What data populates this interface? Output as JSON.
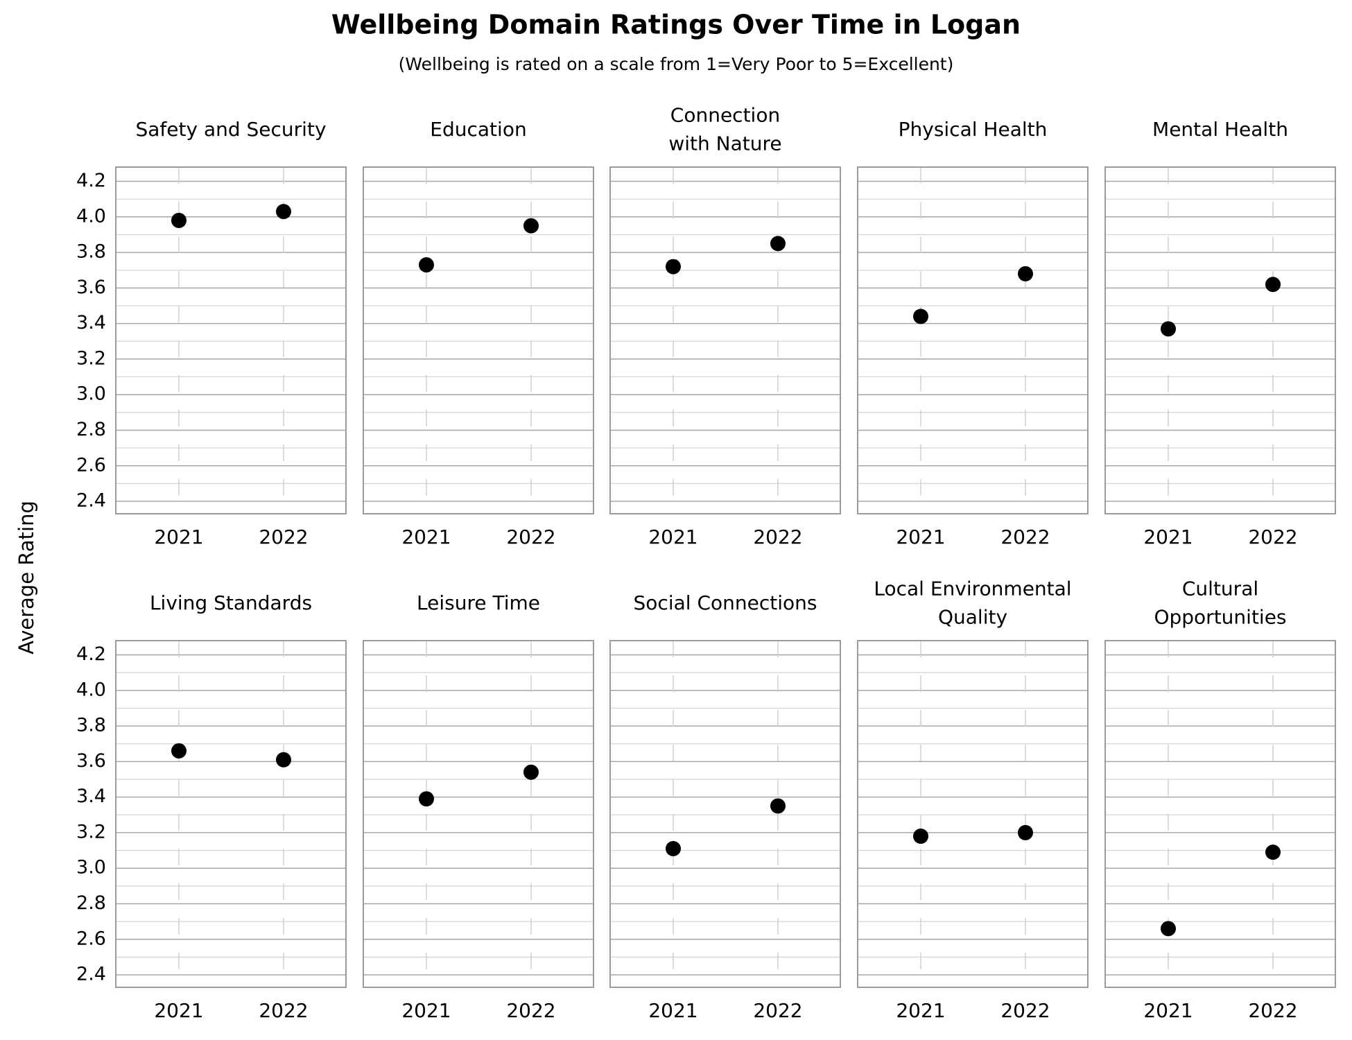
{
  "title": "Wellbeing Domain Ratings Over Time in Logan",
  "subtitle": "(Wellbeing is rated on a scale from 1=Very Poor to 5=Excellent)",
  "ylabel": "Average Rating",
  "ylim": [
    2.33,
    4.28
  ],
  "yticks": [
    2.4,
    2.6,
    2.8,
    {
      "value": 3,
      "label": "3.0"
    },
    3.2,
    3.4,
    3.6,
    3.8,
    {
      "value": 4,
      "label": "4.0"
    },
    4.2
  ],
  "grid": true,
  "minor_grid": true,
  "chart_data": [
    {
      "type": "dot",
      "title": [
        "Safety and Security"
      ],
      "categories": [
        "2021",
        "2022"
      ],
      "values": [
        3.98,
        4.03
      ],
      "color": "#000000"
    },
    {
      "type": "dot",
      "title": [
        "Education"
      ],
      "categories": [
        "2021",
        "2022"
      ],
      "values": [
        3.73,
        3.95
      ],
      "color": "#000000"
    },
    {
      "type": "dot",
      "title": [
        "Connection",
        "with Nature"
      ],
      "categories": [
        "2021",
        "2022"
      ],
      "values": [
        3.72,
        3.85
      ],
      "color": "#000000"
    },
    {
      "type": "dot",
      "title": [
        "Physical Health"
      ],
      "categories": [
        "2021",
        "2022"
      ],
      "values": [
        3.44,
        3.68
      ],
      "color": "#000000"
    },
    {
      "type": "dot",
      "title": [
        "Mental Health"
      ],
      "categories": [
        "2021",
        "2022"
      ],
      "values": [
        3.37,
        3.62
      ],
      "color": "#000000"
    },
    {
      "type": "dot",
      "title": [
        "Living Standards"
      ],
      "categories": [
        "2021",
        "2022"
      ],
      "values": [
        3.66,
        3.61
      ],
      "color": "#000000"
    },
    {
      "type": "dot",
      "title": [
        "Leisure Time"
      ],
      "categories": [
        "2021",
        "2022"
      ],
      "values": [
        3.39,
        3.54
      ],
      "color": "#000000"
    },
    {
      "type": "dot",
      "title": [
        "Social Connections"
      ],
      "categories": [
        "2021",
        "2022"
      ],
      "values": [
        3.11,
        3.35
      ],
      "color": "#000000"
    },
    {
      "type": "dot",
      "title": [
        "Local Environmental",
        "Quality"
      ],
      "categories": [
        "2021",
        "2022"
      ],
      "values": [
        3.18,
        3.2
      ],
      "color": "#000000"
    },
    {
      "type": "dot",
      "title": [
        "Cultural",
        "Opportunities"
      ],
      "categories": [
        "2021",
        "2022"
      ],
      "values": [
        2.66,
        3.09
      ],
      "color": "#000000"
    }
  ]
}
